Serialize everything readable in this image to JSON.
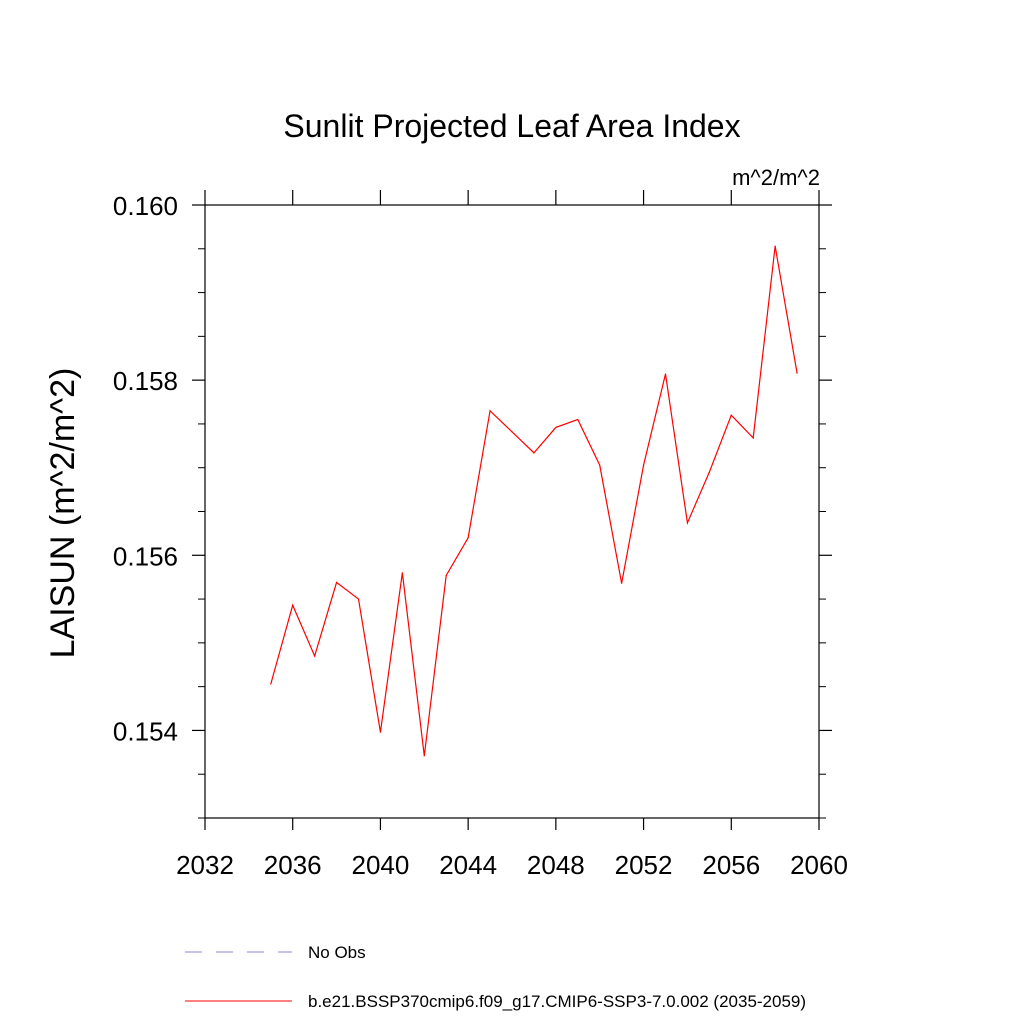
{
  "chart_data": {
    "type": "line",
    "title": "Sunlit Projected Leaf Area Index",
    "units": "m^2/m^2",
    "ylabel": "LAISUN  (m^2/m^2)",
    "xlabel": "",
    "xlim": [
      2032,
      2060
    ],
    "ylim": [
      0.153,
      0.16
    ],
    "xticks": [
      "2032",
      "2036",
      "2040",
      "2044",
      "2048",
      "2052",
      "2056",
      "2060"
    ],
    "yticks": [
      "0.154",
      "0.156",
      "0.158",
      "0.160"
    ],
    "series": [
      {
        "name": "b.e21.BSSP370cmip6.f09_g17.CMIP6-SSP3-7.0.002 (2035-2059)",
        "color": "#ff0000",
        "x": [
          2035,
          2036,
          2037,
          2038,
          2039,
          2040,
          2041,
          2042,
          2043,
          2044,
          2045,
          2046,
          2047,
          2048,
          2049,
          2050,
          2051,
          2052,
          2053,
          2054,
          2055,
          2056,
          2057,
          2058,
          2059
        ],
        "values": [
          0.15453,
          0.15543,
          0.15485,
          0.15569,
          0.1555,
          0.15398,
          0.1558,
          0.15371,
          0.15577,
          0.1562,
          0.15765,
          0.15741,
          0.15717,
          0.15746,
          0.15755,
          0.15703,
          0.15568,
          0.15703,
          0.15807,
          0.15637,
          0.15695,
          0.1576,
          0.15734,
          0.15953,
          0.15808
        ]
      }
    ],
    "legend": [
      {
        "label": "No Obs",
        "style": "dashed",
        "color": "#8a8ad6"
      },
      {
        "label": "b.e21.BSSP370cmip6.f09_g17.CMIP6-SSP3-7.0.002 (2035-2059)",
        "style": "solid",
        "color": "#ff0000"
      }
    ]
  }
}
